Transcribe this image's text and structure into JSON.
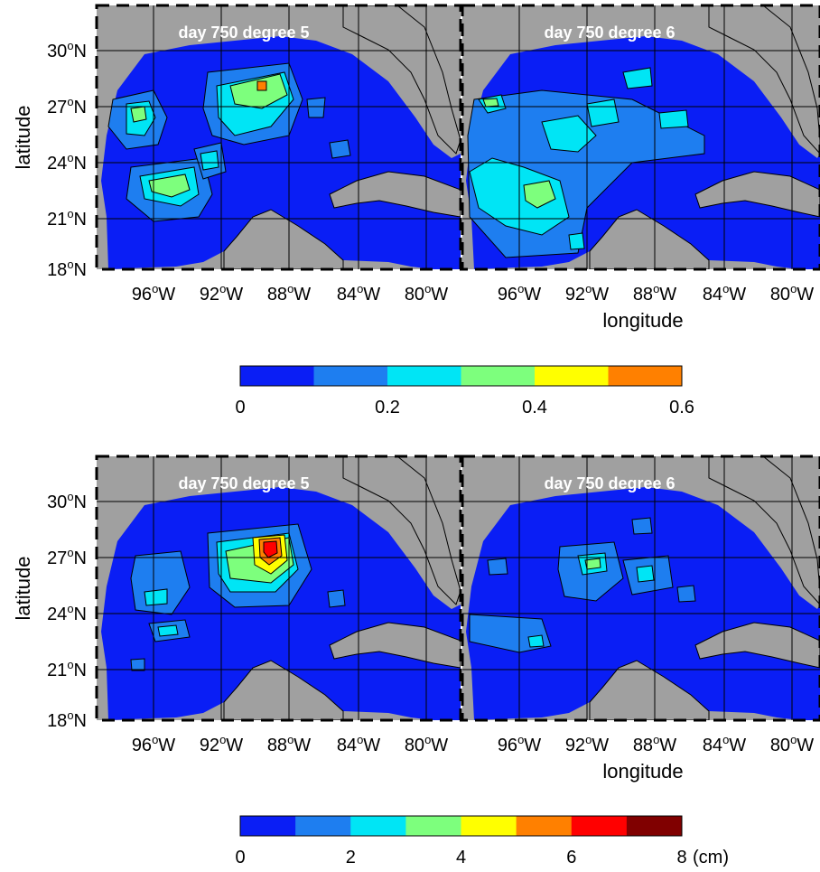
{
  "panels": [
    {
      "id": "top-left",
      "title": "day 750  degree 5"
    },
    {
      "id": "top-right",
      "title": "day 750  degree 6"
    },
    {
      "id": "bottom-left",
      "title": "day 750  degree 5"
    },
    {
      "id": "bottom-right",
      "title": "day 750  degree 6"
    }
  ],
  "axes": {
    "ylabel": "latitude",
    "xlabel": "longitude",
    "lat_ticks": [
      "30",
      "27",
      "24",
      "21",
      "18"
    ],
    "lon_ticks": [
      "96",
      "92",
      "88",
      "84",
      "80"
    ],
    "lat_suffix": "N",
    "lon_suffix": "W",
    "degree_mark": "o"
  },
  "colorbars": [
    {
      "id": "top",
      "ticks": [
        "0",
        "0.2",
        "0.4",
        "0.6"
      ],
      "unit": "",
      "range": [
        0,
        0.6
      ],
      "colors": [
        "#0a1ef5",
        "#1e7ef0",
        "#00e5f5",
        "#7dff7d",
        "#ffff00",
        "#ff8000"
      ]
    },
    {
      "id": "bottom",
      "ticks": [
        "0",
        "2",
        "4",
        "6",
        "8"
      ],
      "unit": "(cm)",
      "range": [
        0,
        8
      ],
      "colors": [
        "#0a1ef5",
        "#1e7ef0",
        "#00e5f5",
        "#7dff7d",
        "#ffff00",
        "#ff8000",
        "#ff0000",
        "#800000"
      ]
    }
  ],
  "colors": {
    "ocean": "#0a1ef5",
    "land": "#a0a0a0",
    "grid": "#000000",
    "title_text": "#ffffff"
  }
}
